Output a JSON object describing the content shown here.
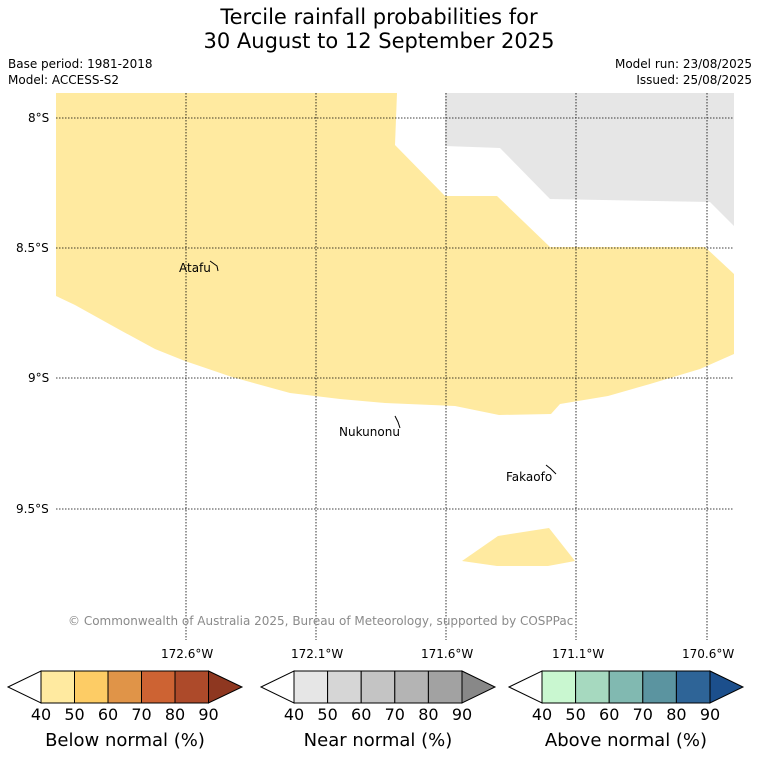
{
  "title": {
    "line1": "Tercile rainfall probabilities for",
    "line2": "30 August to 12 September 2025"
  },
  "meta": {
    "base_period": "Base period: 1981-2018",
    "model": "Model: ACCESS-S2",
    "model_run": "Model run: 23/08/2025",
    "issued": "Issued: 25/08/2025"
  },
  "map": {
    "latitude_labels": [
      "8°S",
      "8.5°S",
      "9°S",
      "9.5°S"
    ],
    "longitude_labels": [
      "172.6°W",
      "172.1°W",
      "171.6°W",
      "171.1°W",
      "170.6°W"
    ],
    "places": [
      "Atafu",
      "Nukunonu",
      "Fakaofo"
    ],
    "regions": [
      {
        "category": "Below normal",
        "range": "40-50",
        "color": "#ffeaa0"
      },
      {
        "category": "Near normal",
        "range": "40-50",
        "color": "#e6e6e6"
      }
    ],
    "copyright": "© Commonwealth of Australia 2025, Bureau of Meteorology, supported by COSPPac"
  },
  "colorbars": [
    {
      "title": "Below normal (%)",
      "ticks": [
        "40",
        "50",
        "60",
        "70",
        "80",
        "90"
      ],
      "colors": [
        "#ffeaa0",
        "#fdcc65",
        "#e09448",
        "#cd6333",
        "#ad4a2a",
        "#8e3720"
      ]
    },
    {
      "title": "Near normal (%)",
      "ticks": [
        "40",
        "50",
        "60",
        "70",
        "80",
        "90"
      ],
      "colors": [
        "#e6e6e6",
        "#d6d6d6",
        "#c4c4c4",
        "#b4b4b4",
        "#a2a2a2",
        "#888888"
      ]
    },
    {
      "title": "Above normal (%)",
      "ticks": [
        "40",
        "50",
        "60",
        "70",
        "80",
        "90"
      ],
      "colors": [
        "#c9f7d0",
        "#a6d9bf",
        "#81b9b1",
        "#5b94a0",
        "#2e6497",
        "#1c4f8c"
      ]
    }
  ]
}
